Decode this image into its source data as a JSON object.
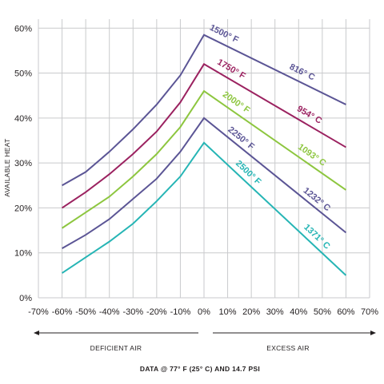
{
  "chart_data": {
    "type": "line",
    "ylabel": "AVAILABLE HEAT",
    "x_ticks": [
      "-70%",
      "-60%",
      "-50%",
      "-40%",
      "-30%",
      "-20%",
      "-10%",
      "0%",
      "10%",
      "20%",
      "30%",
      "40%",
      "50%",
      "60%",
      "70%"
    ],
    "y_ticks": [
      "0%",
      "10%",
      "20%",
      "30%",
      "40%",
      "50%",
      "60%"
    ],
    "xlim": [
      -70,
      70
    ],
    "ylim": [
      0,
      62
    ],
    "grid": true,
    "x": [
      -60,
      -50,
      -40,
      -30,
      -20,
      -10,
      0,
      60
    ],
    "series": [
      {
        "labels": [
          "1500° F",
          "816° C"
        ],
        "color": "#5b5595",
        "values": [
          25,
          28,
          32.5,
          37.5,
          43,
          49.5,
          58.5,
          43
        ]
      },
      {
        "labels": [
          "1750° F",
          "954° C"
        ],
        "color": "#9b2260",
        "values": [
          20,
          23.5,
          27.5,
          32,
          37,
          43.5,
          52,
          33.5
        ]
      },
      {
        "labels": [
          "2000° F",
          "1093° C"
        ],
        "color": "#8dc63f",
        "values": [
          15.5,
          19,
          22.5,
          27,
          32,
          38,
          46,
          24
        ]
      },
      {
        "labels": [
          "2250° F",
          "1232° C"
        ],
        "color": "#5b5595",
        "values": [
          11,
          14,
          17.5,
          22,
          26.5,
          32.5,
          40,
          14.5
        ]
      },
      {
        "labels": [
          "2500° F",
          "1371° C"
        ],
        "color": "#26b5b5",
        "values": [
          5.5,
          9,
          12.5,
          16.5,
          21.5,
          27,
          34.5,
          5
        ]
      }
    ],
    "deficient_label": "DEFICIENT AIR",
    "excess_label": "EXCESS AIR",
    "note": "DATA @ 77° F (25° C) AND 14.7 PSI"
  }
}
